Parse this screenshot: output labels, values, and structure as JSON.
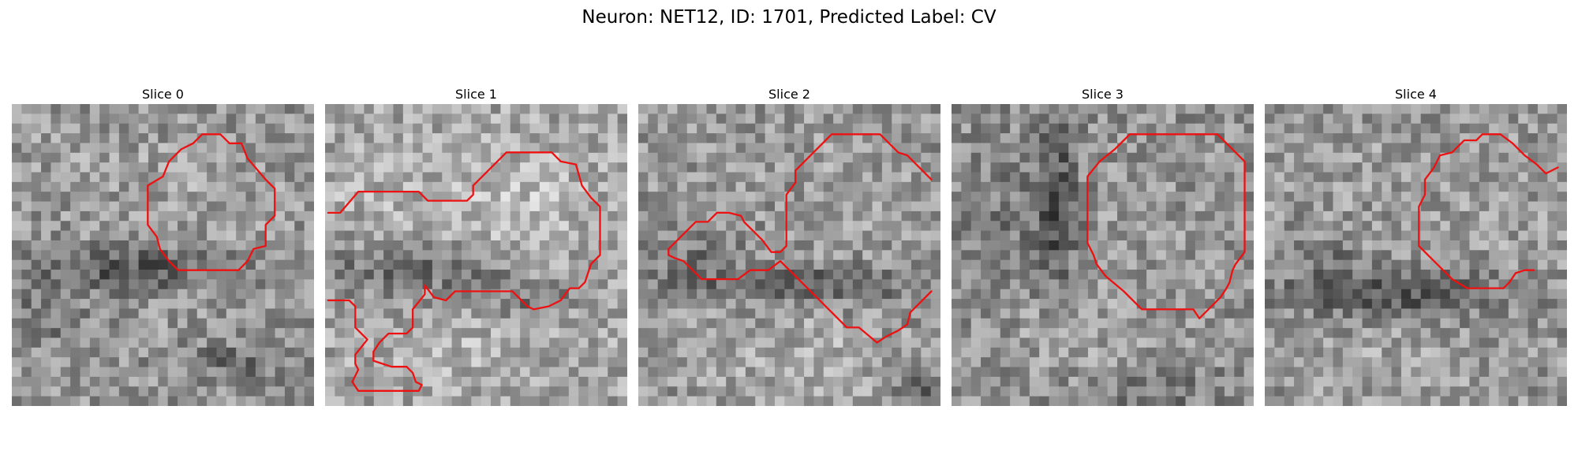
{
  "figure": {
    "suptitle": "Neuron: NET12, ID: 1701, Predicted Label: CV"
  },
  "colors": {
    "contour": "#ee1111",
    "background": "#ffffff"
  },
  "slices": [
    {
      "title": "Slice 0"
    },
    {
      "title": "Slice 1"
    },
    {
      "title": "Slice 2"
    },
    {
      "title": "Slice 3"
    },
    {
      "title": "Slice 4"
    }
  ]
}
